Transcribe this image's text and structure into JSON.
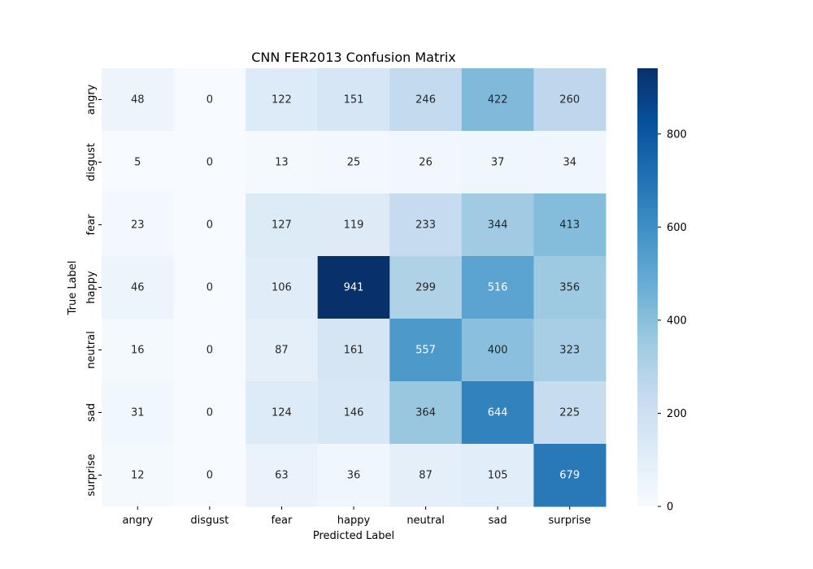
{
  "chart_data": {
    "type": "heatmap",
    "title": "CNN FER2013 Confusion Matrix",
    "xlabel": "Predicted Label",
    "ylabel": "True Label",
    "x_categories": [
      "angry",
      "disgust",
      "fear",
      "happy",
      "neutral",
      "sad",
      "surprise"
    ],
    "y_categories": [
      "angry",
      "disgust",
      "fear",
      "happy",
      "neutral",
      "sad",
      "surprise"
    ],
    "values": [
      [
        48,
        0,
        122,
        151,
        246,
        422,
        260
      ],
      [
        5,
        0,
        13,
        25,
        26,
        37,
        34
      ],
      [
        23,
        0,
        127,
        119,
        233,
        344,
        413
      ],
      [
        46,
        0,
        106,
        941,
        299,
        516,
        356
      ],
      [
        16,
        0,
        87,
        161,
        557,
        400,
        323
      ],
      [
        31,
        0,
        124,
        146,
        364,
        644,
        225
      ],
      [
        12,
        0,
        63,
        36,
        87,
        105,
        679
      ]
    ],
    "colorscale": "Blues",
    "color_range": [
      0,
      941
    ],
    "colorbar_ticks": [
      0,
      200,
      400,
      600,
      800
    ],
    "colors": {
      "low": "#f7fbff",
      "high": "#08306b",
      "text_dark": "#262626",
      "text_light": "#ffffff"
    }
  }
}
